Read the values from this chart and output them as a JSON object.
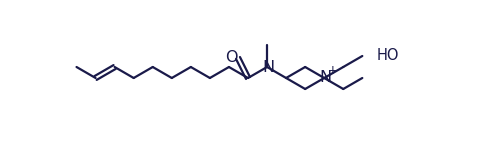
{
  "bg_color": "#ffffff",
  "line_color": "#1a1a4a",
  "line_width": 1.6,
  "font_size": 10.5,
  "figsize": [
    4.91,
    1.45
  ],
  "dpi": 100,
  "xlim": [
    0,
    491
  ],
  "ylim": [
    0,
    145
  ]
}
